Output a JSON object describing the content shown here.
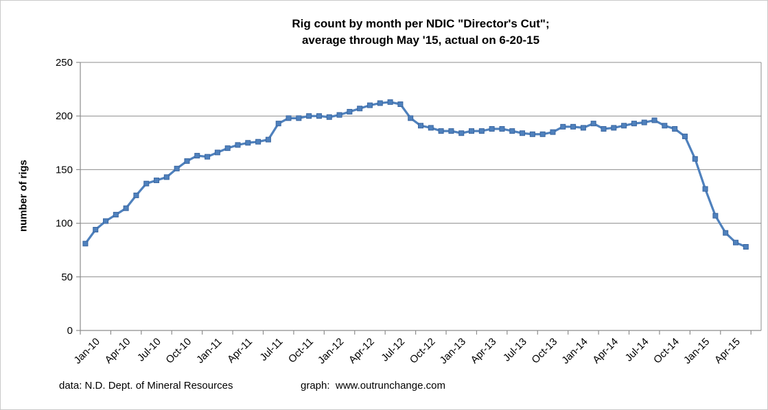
{
  "title": {
    "line1": "Rig count by month per NDIC \"Director's Cut\";",
    "line2": "average through May '15, actual on 6-20-15"
  },
  "y_axis": {
    "title": "number of rigs",
    "ticks": [
      0,
      50,
      100,
      150,
      200,
      250
    ]
  },
  "x_axis": {
    "tick_labels": [
      "Jan-10",
      "Apr-10",
      "Jul-10",
      "Oct-10",
      "Jan-11",
      "Apr-11",
      "Jul-11",
      "Oct-11",
      "Jan-12",
      "Apr-12",
      "Jul-12",
      "Oct-12",
      "Jan-13",
      "Apr-13",
      "Jul-13",
      "Oct-13",
      "Jan-14",
      "Apr-14",
      "Jul-14",
      "Oct-14",
      "Jan-15",
      "Apr-15"
    ]
  },
  "footer": {
    "data_source": "data: N.D. Dept. of Mineral Resources",
    "graph_credit": "graph:  www.outrunchange.com"
  },
  "colors": {
    "series": "#4F81BD",
    "marker_border": "#3A66A0",
    "gridline": "#8C8C8C",
    "axis": "#8C8C8C",
    "text": "#000000"
  },
  "chart_data": {
    "type": "line",
    "title": "Rig count by month per NDIC \"Director's Cut\"; average through May '15, actual on 6-20-15",
    "xlabel": "",
    "ylabel": "number of rigs",
    "ylim": [
      0,
      250
    ],
    "grid": true,
    "legend_position": "none",
    "marker": "square",
    "categories": [
      "Jan-10",
      "Feb-10",
      "Mar-10",
      "Apr-10",
      "May-10",
      "Jun-10",
      "Jul-10",
      "Aug-10",
      "Sep-10",
      "Oct-10",
      "Nov-10",
      "Dec-10",
      "Jan-11",
      "Feb-11",
      "Mar-11",
      "Apr-11",
      "May-11",
      "Jun-11",
      "Jul-11",
      "Aug-11",
      "Sep-11",
      "Oct-11",
      "Nov-11",
      "Dec-11",
      "Jan-12",
      "Feb-12",
      "Mar-12",
      "Apr-12",
      "May-12",
      "Jun-12",
      "Jul-12",
      "Aug-12",
      "Sep-12",
      "Oct-12",
      "Nov-12",
      "Dec-12",
      "Jan-13",
      "Feb-13",
      "Mar-13",
      "Apr-13",
      "May-13",
      "Jun-13",
      "Jul-13",
      "Aug-13",
      "Sep-13",
      "Oct-13",
      "Nov-13",
      "Dec-13",
      "Jan-14",
      "Feb-14",
      "Mar-14",
      "Apr-14",
      "May-14",
      "Jun-14",
      "Jul-14",
      "Aug-14",
      "Sep-14",
      "Oct-14",
      "Nov-14",
      "Dec-14",
      "Jan-15",
      "Feb-15",
      "Mar-15",
      "Apr-15",
      "May-15",
      "Jun-15"
    ],
    "values": [
      81,
      94,
      102,
      108,
      114,
      126,
      137,
      140,
      143,
      151,
      158,
      163,
      162,
      166,
      170,
      173,
      175,
      176,
      178,
      193,
      198,
      198,
      200,
      200,
      199,
      201,
      204,
      207,
      210,
      212,
      213,
      211,
      198,
      191,
      189,
      186,
      186,
      184,
      186,
      186,
      188,
      188,
      186,
      184,
      183,
      183,
      185,
      190,
      190,
      189,
      193,
      188,
      189,
      191,
      193,
      194,
      196,
      191,
      188,
      181,
      160,
      132,
      107,
      91,
      82,
      78
    ]
  }
}
